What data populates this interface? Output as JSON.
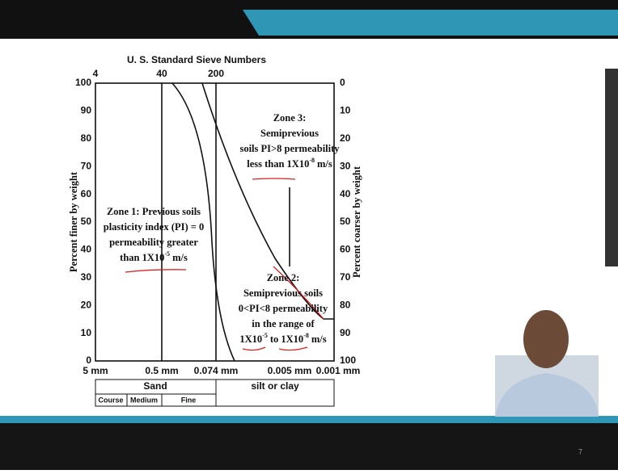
{
  "slide": {
    "chart_title": "U. S. Standard Sieve Numbers",
    "left_axis_label": "Percent finer by weight",
    "right_axis_label": "Percent coarser by weight",
    "left_ticks": [
      "100",
      "90",
      "80",
      "70",
      "60",
      "50",
      "40",
      "30",
      "20",
      "10",
      "0"
    ],
    "right_ticks": [
      "0",
      "10",
      "20",
      "30",
      "40",
      "50",
      "60",
      "70",
      "80",
      "90",
      "100"
    ],
    "top_ticks": [
      "4",
      "40",
      "200"
    ],
    "bottom_ticks": [
      "5 mm",
      "0.5 mm",
      "0.074 mm",
      "0.005 mm",
      "0.001 mm"
    ],
    "zone1": {
      "lines": [
        "Zone 1: Previous soils",
        "plasticity index (PI) = 0",
        "permeability greater"
      ],
      "last": "than 1X10",
      "exp": "-5",
      "unit": "m/s"
    },
    "zone3": {
      "lines": [
        "Zone 3:",
        "Semiprevious",
        "soils PI>8 permeability"
      ],
      "last": "less than 1X10",
      "exp": "-8",
      "unit": "m/s"
    },
    "zone2": {
      "lines": [
        "Zone 2:",
        "Semiprevious soils",
        "0<PI<8 permeability",
        "in the range of"
      ],
      "from": "1X10",
      "from_exp": "-5",
      "to": "to 1X10",
      "to_exp": "-8",
      "unit": "m/s"
    },
    "soil_table": {
      "sand": "Sand",
      "silt": "silt or clay",
      "sub": [
        "Course",
        "Medium",
        "Fine"
      ]
    },
    "page_number": "7"
  }
}
